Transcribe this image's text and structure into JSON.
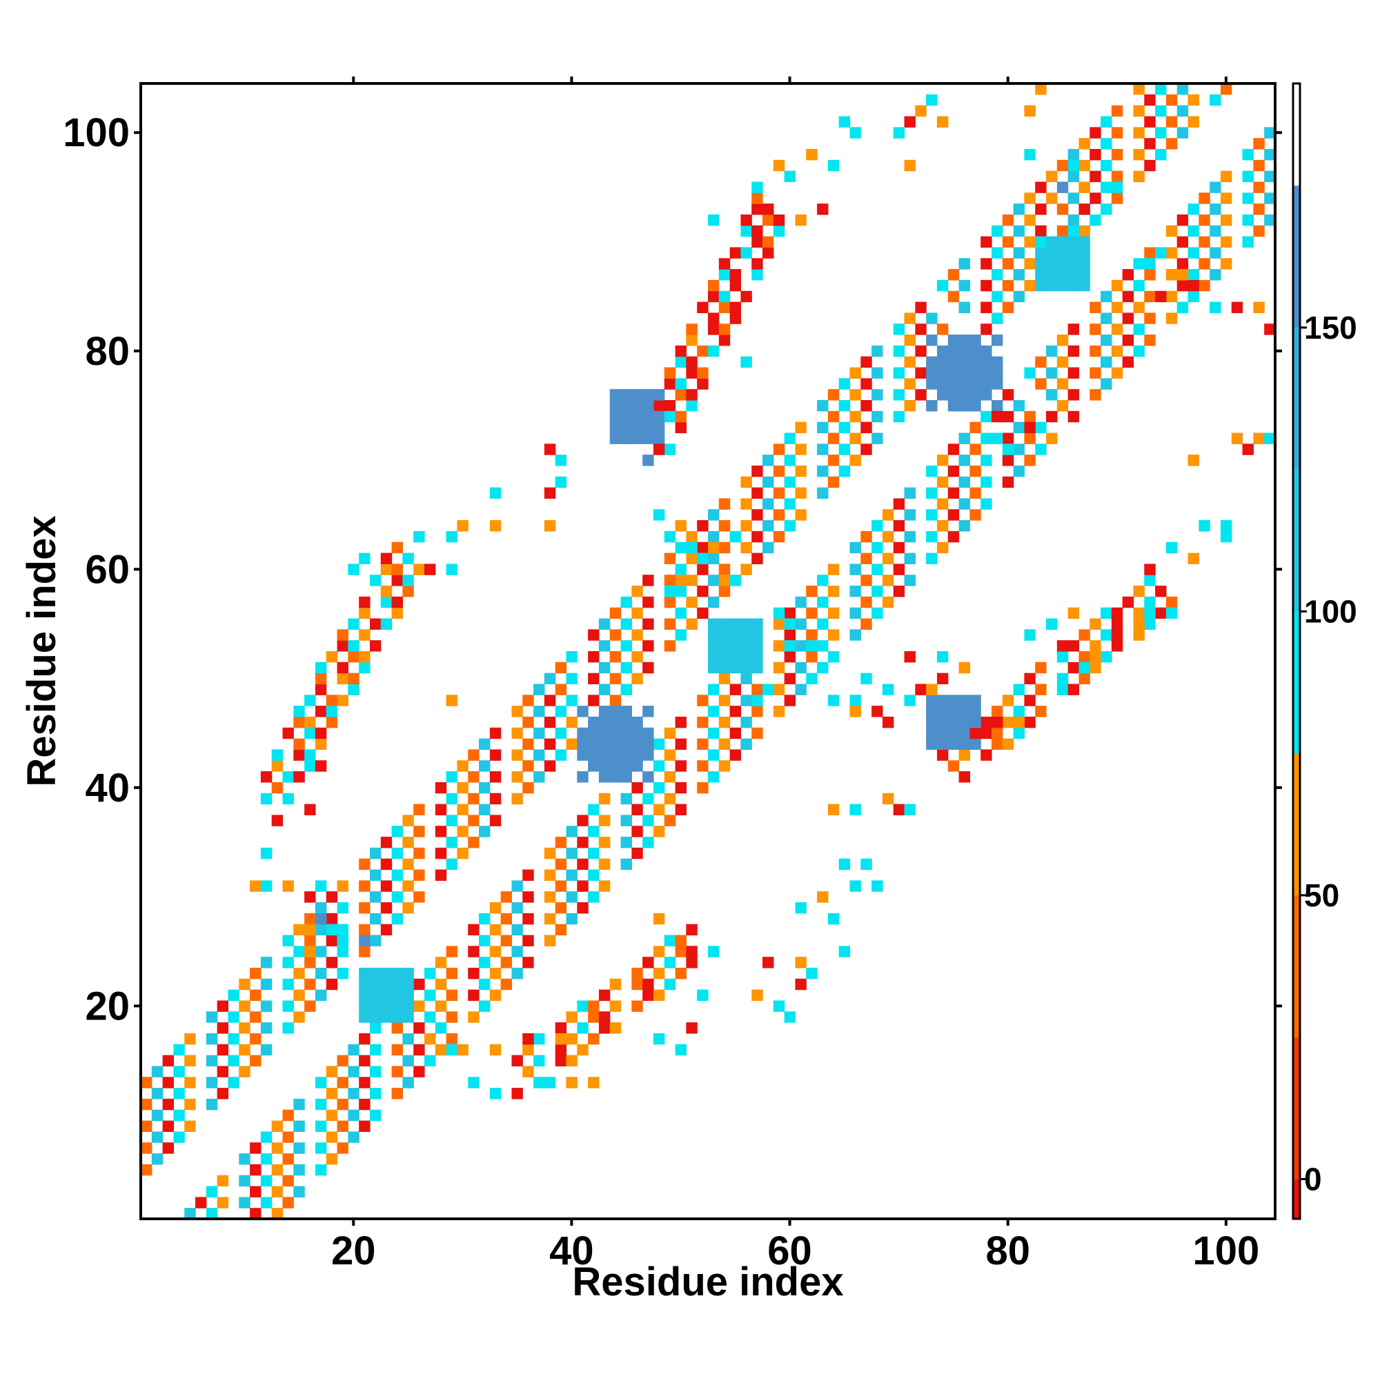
{
  "chart_data": {
    "type": "heatmap",
    "title": "",
    "xlabel": "Residue index",
    "ylabel": "Residue index",
    "xlim": [
      1,
      104
    ],
    "ylim": [
      1,
      104
    ],
    "x_ticks": [
      20,
      40,
      60,
      80,
      100
    ],
    "y_ticks": [
      20,
      40,
      60,
      80,
      100
    ],
    "grid": false,
    "legend": "colorbar at right",
    "colorbar": {
      "range": [
        -7,
        193
      ],
      "ticks": [
        0,
        50,
        100,
        150
      ],
      "bands": [
        {
          "from": -7,
          "to": 0,
          "color": "#E8120E"
        },
        {
          "from": 0,
          "to": 25,
          "color": "#F03A0B"
        },
        {
          "from": 25,
          "to": 50,
          "color": "#FF6A00"
        },
        {
          "from": 50,
          "to": 75,
          "color": "#FF9500"
        },
        {
          "from": 75,
          "to": 100,
          "color": "#00E5F0"
        },
        {
          "from": 100,
          "to": 125,
          "color": "#21C6E2"
        },
        {
          "from": 125,
          "to": 150,
          "color": "#34AFDE"
        },
        {
          "from": 150,
          "to": 175,
          "color": "#4D8FCB"
        },
        {
          "from": 175,
          "to": 193,
          "color": "#FFFFFF"
        }
      ]
    },
    "value_colors": {
      "0": "#E8120E",
      "30": "#FF6A00",
      "60": "#FF9500",
      "90": "#00E5F0",
      "115": "#21C6E2",
      "160": "#4D8FCB"
    },
    "bands": [
      {
        "x0": 2,
        "y0": 2,
        "x1": 44,
        "y1": 44,
        "offsets": [
          -6,
          -5,
          -4,
          -3,
          -2,
          2,
          3,
          4,
          5,
          6
        ],
        "values": [
          30,
          115,
          0,
          90,
          60
        ]
      },
      {
        "x0": 44,
        "y0": 44,
        "x1": 78,
        "y1": 78,
        "offsets": [
          -6,
          -5,
          -4,
          -3,
          -2,
          2,
          3,
          4,
          5,
          6
        ],
        "values": [
          115,
          30,
          90,
          60,
          0
        ]
      },
      {
        "x0": 80,
        "y0": 80,
        "x1": 103,
        "y1": 103,
        "offsets": [
          -6,
          -5,
          -4,
          -3,
          -2,
          2,
          3,
          4,
          5,
          6
        ],
        "values": [
          90,
          30,
          115,
          60,
          0
        ]
      },
      {
        "x0": 13,
        "y0": 40,
        "x1": 25,
        "y1": 61,
        "offsets": [
          -1,
          0,
          1
        ],
        "values": [
          0,
          30,
          90,
          60
        ]
      },
      {
        "x0": 48,
        "y0": 72,
        "x1": 58,
        "y1": 93,
        "offsets": [
          -1,
          0,
          1
        ],
        "values": [
          0,
          30,
          90,
          0
        ]
      },
      {
        "x0": 36,
        "y0": 14,
        "x1": 52,
        "y1": 26,
        "offsets": [
          -1,
          0,
          1
        ],
        "values": [
          0,
          60,
          90,
          30
        ]
      },
      {
        "x0": 75,
        "y0": 42,
        "x1": 94,
        "y1": 58,
        "offsets": [
          -1,
          0,
          1
        ],
        "values": [
          0,
          30,
          60,
          90
        ]
      }
    ],
    "blobs": [
      {
        "cx": 23,
        "cy": 21,
        "r": 2,
        "value": 115
      },
      {
        "cx": 44,
        "cy": 44,
        "r": 3,
        "value": 160
      },
      {
        "cx": 55,
        "cy": 53,
        "r": 2,
        "value": 115
      },
      {
        "cx": 76,
        "cy": 78,
        "r": 3,
        "value": 160
      },
      {
        "cx": 85,
        "cy": 88,
        "r": 2,
        "value": 115
      },
      {
        "cx": 46,
        "cy": 74,
        "r": 2,
        "value": 160
      },
      {
        "cx": 75,
        "cy": 46,
        "r": 2,
        "value": 160
      }
    ],
    "points": [
      [
        71,
        101,
        0
      ],
      [
        72,
        102,
        60
      ],
      [
        73,
        103,
        90
      ],
      [
        70,
        100,
        90
      ],
      [
        74,
        101,
        60
      ],
      [
        66,
        100,
        90
      ],
      [
        65,
        101,
        90
      ],
      [
        59,
        97,
        60
      ],
      [
        60,
        96,
        90
      ],
      [
        62,
        98,
        60
      ],
      [
        57,
        95,
        90
      ],
      [
        64,
        97,
        90
      ],
      [
        58,
        93,
        0
      ],
      [
        61,
        92,
        60
      ],
      [
        63,
        93,
        0
      ],
      [
        53,
        92,
        90
      ],
      [
        82,
        102,
        60
      ],
      [
        83,
        104,
        60
      ],
      [
        84,
        96,
        60
      ],
      [
        86,
        97,
        90
      ],
      [
        82,
        98,
        90
      ],
      [
        71,
        97,
        60
      ],
      [
        56,
        79,
        90
      ],
      [
        51,
        81,
        60
      ],
      [
        53,
        80,
        90
      ],
      [
        55,
        83,
        0
      ],
      [
        48,
        75,
        0
      ],
      [
        49,
        74,
        90
      ],
      [
        48,
        71,
        0
      ],
      [
        47,
        70,
        160
      ],
      [
        39,
        70,
        90
      ],
      [
        38,
        71,
        0
      ],
      [
        39,
        68,
        90
      ],
      [
        38,
        67,
        0
      ],
      [
        33,
        67,
        90
      ],
      [
        33,
        64,
        60
      ],
      [
        30,
        64,
        60
      ],
      [
        29,
        63,
        90
      ],
      [
        38,
        64,
        60
      ],
      [
        21,
        61,
        90
      ],
      [
        20,
        60,
        90
      ],
      [
        23,
        60,
        60
      ],
      [
        25,
        61,
        90
      ],
      [
        27,
        60,
        0
      ],
      [
        29,
        60,
        90
      ],
      [
        26,
        63,
        90
      ],
      [
        17,
        51,
        90
      ],
      [
        16,
        48,
        90
      ],
      [
        18,
        47,
        90
      ],
      [
        29,
        48,
        60
      ],
      [
        20,
        49,
        90
      ],
      [
        13,
        42,
        60
      ],
      [
        16,
        42,
        90
      ],
      [
        17,
        42,
        0
      ],
      [
        14,
        41,
        90
      ],
      [
        12,
        39,
        90
      ],
      [
        16,
        38,
        0
      ],
      [
        13,
        37,
        0
      ],
      [
        12,
        34,
        90
      ],
      [
        11,
        31,
        60
      ],
      [
        12,
        31,
        90
      ],
      [
        14,
        31,
        60
      ],
      [
        17,
        31,
        90
      ],
      [
        19,
        31,
        60
      ],
      [
        16,
        30,
        0
      ],
      [
        17,
        28,
        160
      ],
      [
        16,
        27,
        60
      ],
      [
        18,
        27,
        90
      ],
      [
        19,
        26,
        90
      ],
      [
        21,
        26,
        160
      ],
      [
        15,
        25,
        90
      ],
      [
        16,
        25,
        60
      ],
      [
        26,
        20,
        60
      ],
      [
        27,
        19,
        90
      ],
      [
        28,
        18,
        90
      ],
      [
        31,
        19,
        60
      ],
      [
        27,
        17,
        60
      ],
      [
        29,
        16,
        90
      ],
      [
        30,
        16,
        60
      ],
      [
        33,
        16,
        60
      ],
      [
        31,
        13,
        90
      ],
      [
        33,
        12,
        90
      ],
      [
        35,
        12,
        0
      ],
      [
        38,
        13,
        90
      ],
      [
        40,
        13,
        60
      ],
      [
        42,
        13,
        60
      ],
      [
        41,
        16,
        60
      ],
      [
        39,
        17,
        60
      ],
      [
        36,
        17,
        0
      ],
      [
        48,
        28,
        60
      ],
      [
        63,
        30,
        60
      ],
      [
        64,
        28,
        90
      ],
      [
        61,
        29,
        90
      ],
      [
        65,
        25,
        90
      ],
      [
        61,
        24,
        60
      ],
      [
        62,
        23,
        90
      ],
      [
        61,
        22,
        0
      ],
      [
        58,
        24,
        0
      ],
      [
        60,
        19,
        90
      ],
      [
        59,
        20,
        90
      ],
      [
        57,
        21,
        60
      ],
      [
        52,
        21,
        90
      ],
      [
        51,
        18,
        0
      ],
      [
        50,
        16,
        90
      ],
      [
        48,
        17,
        90
      ],
      [
        64,
        38,
        60
      ],
      [
        66,
        38,
        90
      ],
      [
        69,
        39,
        60
      ],
      [
        70,
        38,
        0
      ],
      [
        71,
        38,
        90
      ],
      [
        66,
        31,
        90
      ],
      [
        68,
        31,
        90
      ],
      [
        65,
        33,
        90
      ],
      [
        67,
        33,
        90
      ],
      [
        69,
        49,
        90
      ],
      [
        71,
        48,
        90
      ],
      [
        72,
        49,
        0
      ],
      [
        74,
        50,
        0
      ],
      [
        73,
        49,
        60
      ],
      [
        76,
        51,
        60
      ],
      [
        69,
        46,
        0
      ],
      [
        68,
        47,
        0
      ],
      [
        66,
        48,
        90
      ],
      [
        71,
        52,
        0
      ],
      [
        74,
        52,
        90
      ],
      [
        77,
        45,
        0
      ],
      [
        79,
        46,
        0
      ],
      [
        81,
        46,
        60
      ],
      [
        76,
        41,
        0
      ],
      [
        82,
        54,
        90
      ],
      [
        84,
        55,
        90
      ],
      [
        86,
        56,
        60
      ],
      [
        85,
        53,
        0
      ],
      [
        87,
        51,
        90
      ],
      [
        88,
        52,
        60
      ],
      [
        90,
        54,
        0
      ],
      [
        92,
        55,
        60
      ],
      [
        91,
        57,
        0
      ],
      [
        93,
        56,
        90
      ],
      [
        95,
        56,
        90
      ],
      [
        93,
        60,
        0
      ],
      [
        95,
        62,
        90
      ],
      [
        97,
        61,
        60
      ],
      [
        98,
        64,
        90
      ],
      [
        100,
        63,
        90
      ],
      [
        97,
        70,
        60
      ],
      [
        101,
        72,
        60
      ],
      [
        102,
        71,
        0
      ],
      [
        103,
        72,
        60
      ],
      [
        104,
        72,
        90
      ],
      [
        100,
        64,
        90
      ],
      [
        92,
        84,
        60
      ],
      [
        94,
        85,
        0
      ],
      [
        96,
        84,
        90
      ],
      [
        97,
        86,
        90
      ],
      [
        99,
        84,
        90
      ],
      [
        101,
        84,
        0
      ],
      [
        103,
        84,
        60
      ],
      [
        104,
        82,
        0
      ],
      [
        66,
        47,
        60
      ],
      [
        62,
        50,
        90
      ],
      [
        63,
        51,
        90
      ],
      [
        64,
        48,
        90
      ],
      [
        57,
        48,
        90
      ],
      [
        58,
        49,
        90
      ],
      [
        60,
        53,
        90
      ],
      [
        62,
        53,
        90
      ],
      [
        64,
        52,
        90
      ],
      [
        67,
        50,
        90
      ],
      [
        59,
        56,
        90
      ],
      [
        60,
        55,
        90
      ],
      [
        49,
        58,
        90
      ],
      [
        50,
        59,
        60
      ],
      [
        51,
        62,
        90
      ],
      [
        52,
        61,
        90
      ],
      [
        53,
        62,
        60
      ],
      [
        55,
        63,
        90
      ],
      [
        54,
        59,
        60
      ],
      [
        55,
        59,
        90
      ],
      [
        49,
        63,
        90
      ],
      [
        50,
        64,
        60
      ],
      [
        48,
        65,
        90
      ],
      [
        50,
        60,
        90
      ],
      [
        79,
        72,
        90
      ],
      [
        80,
        71,
        90
      ],
      [
        82,
        73,
        0
      ],
      [
        79,
        74,
        0
      ],
      [
        84,
        74,
        0
      ],
      [
        86,
        91,
        90
      ],
      [
        87,
        93,
        0
      ],
      [
        88,
        92,
        90
      ],
      [
        90,
        95,
        90
      ],
      [
        85,
        95,
        160
      ],
      [
        84,
        94,
        60
      ],
      [
        82,
        92,
        60
      ],
      [
        83,
        90,
        90
      ],
      [
        93,
        88,
        90
      ],
      [
        94,
        89,
        90
      ],
      [
        96,
        87,
        60
      ],
      [
        97,
        86,
        0
      ]
    ]
  }
}
